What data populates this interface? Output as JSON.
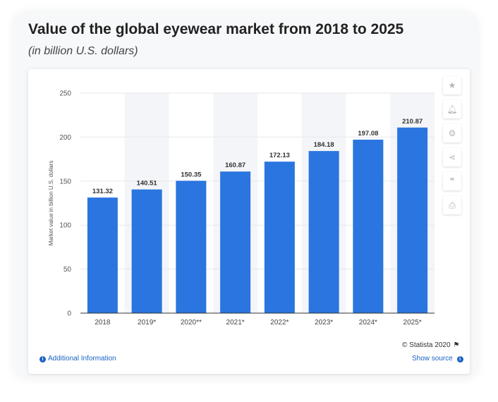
{
  "header": {
    "title": "Value of the global eyewear market from 2018 to 2025",
    "subtitle": "(in billion U.S. dollars)"
  },
  "toolbar": {
    "icons": [
      "star-icon",
      "bell-icon",
      "gear-icon",
      "share-icon",
      "quote-icon",
      "print-icon"
    ]
  },
  "footer": {
    "copyright": "© Statista 2020",
    "additional_info": "Additional Information",
    "show_source": "Show source"
  },
  "colors": {
    "bar": "#2a75df",
    "alt_band": "#f3f5f8",
    "grid": "#e6e8ea",
    "link": "#1a63c4"
  },
  "chart_data": {
    "type": "bar",
    "categories": [
      "2018",
      "2019*",
      "2020**",
      "2021*",
      "2022*",
      "2023*",
      "2024*",
      "2025*"
    ],
    "values": [
      131.32,
      140.51,
      150.35,
      160.87,
      172.13,
      184.18,
      197.08,
      210.87
    ],
    "value_labels": [
      "131.32",
      "140.51",
      "150.35",
      "160.87",
      "172.13",
      "184.18",
      "197.08",
      "210.87"
    ],
    "ylabel": "Market value in billion U.S. dollars",
    "ylim": [
      0,
      250
    ],
    "yticks": [
      "0",
      "50",
      "100",
      "150",
      "200",
      "250"
    ],
    "grid": true
  }
}
